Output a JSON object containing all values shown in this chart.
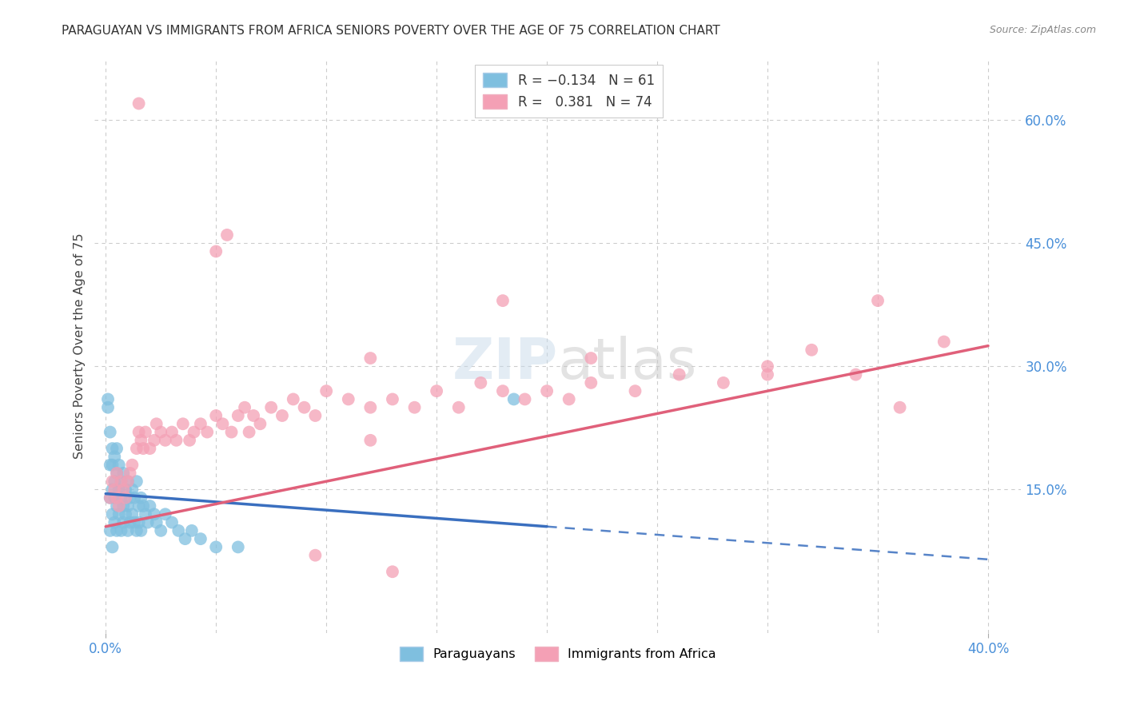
{
  "title": "PARAGUAYAN VS IMMIGRANTS FROM AFRICA SENIORS POVERTY OVER THE AGE OF 75 CORRELATION CHART",
  "source": "Source: ZipAtlas.com",
  "ylabel": "Seniors Poverty Over the Age of 75",
  "blue_color": "#7fbfdf",
  "blue_edge_color": "#7fbfdf",
  "pink_color": "#f4a0b5",
  "pink_edge_color": "#f4a0b5",
  "blue_line_color": "#3a6fbf",
  "pink_line_color": "#e0607a",
  "tick_color": "#4a90d9",
  "grid_color": "#cccccc",
  "title_color": "#333333",
  "source_color": "#888888",
  "watermark_color_zip": "#c8daea",
  "watermark_color_atlas": "#c8c8c8",
  "legend_label1": "Paraguayans",
  "legend_label2": "Immigrants from Africa",
  "para_r": -0.134,
  "para_n": 61,
  "africa_r": 0.381,
  "africa_n": 74,
  "xlim": [
    0.0,
    0.4
  ],
  "ylim": [
    0.0,
    0.65
  ],
  "ytick_positions": [
    0.15,
    0.3,
    0.45,
    0.6
  ],
  "ytick_labels": [
    "15.0%",
    "30.0%",
    "45.0%",
    "60.0%"
  ],
  "xtick_positions": [
    0.0,
    0.4
  ],
  "xtick_labels": [
    "0.0%",
    "40.0%"
  ],
  "grid_x_positions": [
    0.0,
    0.05,
    0.1,
    0.15,
    0.2,
    0.25,
    0.3,
    0.35,
    0.4
  ],
  "para_x": [
    0.001,
    0.001,
    0.002,
    0.002,
    0.002,
    0.002,
    0.003,
    0.003,
    0.003,
    0.003,
    0.003,
    0.004,
    0.004,
    0.004,
    0.004,
    0.005,
    0.005,
    0.005,
    0.005,
    0.006,
    0.006,
    0.006,
    0.007,
    0.007,
    0.007,
    0.008,
    0.008,
    0.008,
    0.009,
    0.009,
    0.01,
    0.01,
    0.01,
    0.011,
    0.011,
    0.012,
    0.012,
    0.013,
    0.013,
    0.014,
    0.014,
    0.015,
    0.015,
    0.016,
    0.016,
    0.017,
    0.018,
    0.019,
    0.02,
    0.022,
    0.023,
    0.025,
    0.027,
    0.03,
    0.033,
    0.036,
    0.039,
    0.043,
    0.05,
    0.06,
    0.185
  ],
  "para_y": [
    0.25,
    0.26,
    0.14,
    0.18,
    0.1,
    0.22,
    0.15,
    0.18,
    0.12,
    0.2,
    0.08,
    0.16,
    0.14,
    0.19,
    0.11,
    0.17,
    0.13,
    0.1,
    0.2,
    0.15,
    0.12,
    0.18,
    0.14,
    0.16,
    0.1,
    0.17,
    0.13,
    0.11,
    0.15,
    0.12,
    0.16,
    0.13,
    0.1,
    0.14,
    0.11,
    0.15,
    0.12,
    0.14,
    0.11,
    0.16,
    0.1,
    0.13,
    0.11,
    0.14,
    0.1,
    0.13,
    0.12,
    0.11,
    0.13,
    0.12,
    0.11,
    0.1,
    0.12,
    0.11,
    0.1,
    0.09,
    0.1,
    0.09,
    0.08,
    0.08,
    0.26
  ],
  "africa_x": [
    0.002,
    0.003,
    0.004,
    0.005,
    0.005,
    0.006,
    0.007,
    0.008,
    0.009,
    0.01,
    0.011,
    0.012,
    0.014,
    0.015,
    0.016,
    0.017,
    0.018,
    0.02,
    0.022,
    0.023,
    0.025,
    0.027,
    0.03,
    0.032,
    0.035,
    0.038,
    0.04,
    0.043,
    0.046,
    0.05,
    0.053,
    0.057,
    0.06,
    0.063,
    0.067,
    0.07,
    0.075,
    0.08,
    0.085,
    0.09,
    0.095,
    0.1,
    0.11,
    0.12,
    0.13,
    0.14,
    0.15,
    0.16,
    0.17,
    0.18,
    0.19,
    0.2,
    0.21,
    0.22,
    0.24,
    0.26,
    0.28,
    0.3,
    0.32,
    0.34,
    0.36,
    0.38,
    0.05,
    0.055,
    0.12,
    0.18,
    0.22,
    0.3,
    0.35,
    0.12,
    0.065,
    0.095,
    0.13,
    0.015
  ],
  "africa_y": [
    0.14,
    0.16,
    0.15,
    0.14,
    0.17,
    0.13,
    0.16,
    0.15,
    0.14,
    0.16,
    0.17,
    0.18,
    0.2,
    0.22,
    0.21,
    0.2,
    0.22,
    0.2,
    0.21,
    0.23,
    0.22,
    0.21,
    0.22,
    0.21,
    0.23,
    0.21,
    0.22,
    0.23,
    0.22,
    0.24,
    0.23,
    0.22,
    0.24,
    0.25,
    0.24,
    0.23,
    0.25,
    0.24,
    0.26,
    0.25,
    0.24,
    0.27,
    0.26,
    0.25,
    0.26,
    0.25,
    0.27,
    0.25,
    0.28,
    0.27,
    0.26,
    0.27,
    0.26,
    0.28,
    0.27,
    0.29,
    0.28,
    0.3,
    0.32,
    0.29,
    0.25,
    0.33,
    0.44,
    0.46,
    0.31,
    0.38,
    0.31,
    0.29,
    0.38,
    0.21,
    0.22,
    0.07,
    0.05,
    0.62
  ],
  "blue_line_x0": 0.0,
  "blue_line_x_solid_end": 0.2,
  "blue_line_x1": 0.4,
  "blue_line_y0": 0.145,
  "blue_line_y_solid_end": 0.105,
  "blue_line_y1": 0.065,
  "pink_line_x0": 0.0,
  "pink_line_x1": 0.4,
  "pink_line_y0": 0.105,
  "pink_line_y1": 0.325
}
